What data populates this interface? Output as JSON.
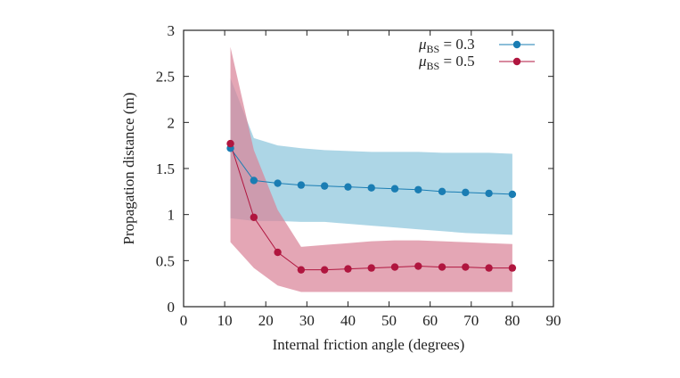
{
  "chart_data": {
    "type": "line",
    "title": "",
    "xlabel": "Internal friction angle (degrees)",
    "ylabel": "Propagation distance (m)",
    "xlim": [
      0,
      90
    ],
    "ylim": [
      0,
      3
    ],
    "xticks": [
      0,
      10,
      20,
      30,
      40,
      50,
      60,
      70,
      80,
      90
    ],
    "yticks": [
      0,
      0.5,
      1,
      1.5,
      2,
      2.5,
      3
    ],
    "xtick_labels": [
      "0",
      "10",
      "20",
      "30",
      "40",
      "50",
      "60",
      "70",
      "80",
      "90"
    ],
    "ytick_labels": [
      "0",
      "0.5",
      "1",
      "1.5",
      "2",
      "2.5",
      "3"
    ],
    "grid": false,
    "legend_position": "top-right",
    "x": [
      11.4,
      17.1,
      22.9,
      28.6,
      34.3,
      40.0,
      45.7,
      51.4,
      57.1,
      62.9,
      68.6,
      74.3,
      80.0
    ],
    "series": [
      {
        "name_main": "μ",
        "name_sub": "BS",
        "name_value": " = 0.3",
        "color": "#1a7db3",
        "band_color": "#8ec6dc",
        "values": [
          1.72,
          1.37,
          1.34,
          1.32,
          1.31,
          1.3,
          1.29,
          1.28,
          1.27,
          1.25,
          1.24,
          1.23,
          1.22
        ],
        "upper": [
          2.48,
          1.83,
          1.75,
          1.72,
          1.7,
          1.69,
          1.68,
          1.68,
          1.68,
          1.67,
          1.67,
          1.67,
          1.66
        ],
        "lower": [
          0.96,
          0.93,
          0.93,
          0.92,
          0.92,
          0.9,
          0.88,
          0.86,
          0.84,
          0.82,
          0.8,
          0.79,
          0.78
        ]
      },
      {
        "name_main": "μ",
        "name_sub": "BS",
        "name_value": " = 0.5",
        "color": "#b0163f",
        "band_color": "#d98499",
        "values": [
          1.77,
          0.97,
          0.59,
          0.4,
          0.4,
          0.41,
          0.42,
          0.43,
          0.44,
          0.43,
          0.43,
          0.42,
          0.42
        ],
        "upper": [
          2.82,
          1.7,
          1.05,
          0.65,
          0.67,
          0.69,
          0.71,
          0.72,
          0.72,
          0.71,
          0.7,
          0.69,
          0.68
        ],
        "lower": [
          0.7,
          0.42,
          0.23,
          0.16,
          0.16,
          0.16,
          0.16,
          0.16,
          0.16,
          0.16,
          0.16,
          0.16,
          0.16
        ]
      }
    ]
  }
}
